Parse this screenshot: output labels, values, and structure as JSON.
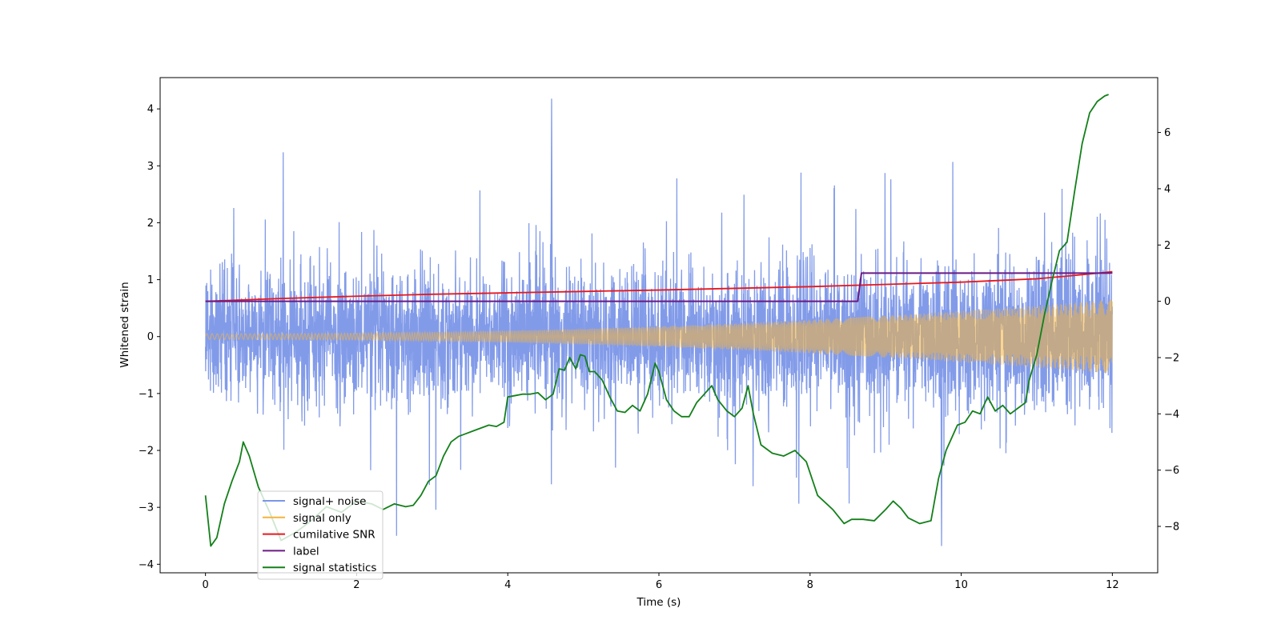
{
  "chart_data": {
    "type": "line",
    "title": "",
    "xlabel": "Time (s)",
    "ylabel": "Whitened strain",
    "y2label": "",
    "xlim": [
      -0.6,
      12.6
    ],
    "ylim": [
      -4.15,
      4.55
    ],
    "y2lim": [
      -9.65,
      7.95
    ],
    "xticks": [
      0,
      2,
      4,
      6,
      8,
      10,
      12
    ],
    "yticks": [
      -4,
      -3,
      -2,
      -1,
      0,
      1,
      2,
      3,
      4
    ],
    "y2ticks": [
      -8,
      -6,
      -4,
      -2,
      0,
      2,
      4,
      6
    ],
    "xtick_labels": [
      "0",
      "2",
      "4",
      "6",
      "8",
      "10",
      "12"
    ],
    "ytick_labels": [
      "−4",
      "−3",
      "−2",
      "−1",
      "0",
      "1",
      "2",
      "3",
      "4"
    ],
    "y2tick_labels": [
      "−8",
      "−6",
      "−4",
      "−2",
      "0",
      "2",
      "4",
      "6"
    ],
    "legend_position": "lower-left",
    "series": [
      {
        "name": "signal+ noise",
        "axis": "left",
        "color": "#7b96e8",
        "style": "dense noise, roughly -2.7 to 4.2, envelope widening with signal",
        "x_range": [
          0,
          12
        ],
        "noise_mean": 0.0,
        "noise_std": 0.75,
        "max_peak": 4.18,
        "min_peak": -3.68
      },
      {
        "name": "signal only",
        "axis": "left",
        "color": "#f5b43c",
        "style": "chirp with amplitude growing from 0.05 to 0.65",
        "x_range": [
          0,
          12
        ],
        "amplitude_start": 0.05,
        "amplitude_end": 0.65
      },
      {
        "name": "cumilative SNR",
        "axis": "right",
        "color": "#e8171e",
        "x": [
          0,
          1,
          2,
          3,
          4,
          5,
          6,
          7,
          8,
          9,
          10,
          11,
          11.5,
          12
        ],
        "values": [
          0.0,
          0.1,
          0.18,
          0.25,
          0.3,
          0.35,
          0.4,
          0.46,
          0.52,
          0.6,
          0.68,
          0.8,
          0.92,
          1.05
        ]
      },
      {
        "name": "label",
        "axis": "right",
        "color": "#6a1a84",
        "x": [
          0,
          8.63,
          8.68,
          12
        ],
        "values": [
          0,
          0,
          1,
          1
        ]
      },
      {
        "name": "signal statistics",
        "axis": "right",
        "color": "#13801a",
        "x": [
          0,
          0.07,
          0.15,
          0.25,
          0.35,
          0.45,
          0.5,
          0.58,
          0.7,
          0.85,
          1.0,
          1.2,
          1.4,
          1.6,
          1.8,
          2.0,
          2.2,
          2.35,
          2.5,
          2.65,
          2.75,
          2.85,
          2.95,
          3.05,
          3.15,
          3.25,
          3.35,
          3.45,
          3.55,
          3.65,
          3.75,
          3.85,
          3.95,
          4.0,
          4.1,
          4.2,
          4.3,
          4.4,
          4.5,
          4.6,
          4.68,
          4.75,
          4.82,
          4.9,
          4.96,
          5.02,
          5.08,
          5.15,
          5.25,
          5.35,
          5.45,
          5.55,
          5.65,
          5.75,
          5.85,
          5.95,
          6.0,
          6.1,
          6.2,
          6.3,
          6.4,
          6.5,
          6.6,
          6.7,
          6.78,
          6.9,
          7.0,
          7.1,
          7.18,
          7.25,
          7.35,
          7.5,
          7.65,
          7.8,
          7.95,
          8.1,
          8.3,
          8.45,
          8.55,
          8.7,
          8.85,
          9.0,
          9.1,
          9.2,
          9.3,
          9.45,
          9.6,
          9.7,
          9.8,
          9.95,
          10.05,
          10.15,
          10.25,
          10.35,
          10.45,
          10.55,
          10.65,
          10.75,
          10.85,
          10.9,
          11.0,
          11.1,
          11.2,
          11.3,
          11.4,
          11.5,
          11.6,
          11.7,
          11.8,
          11.9,
          11.95
        ],
        "values": [
          -6.9,
          -8.7,
          -8.4,
          -7.2,
          -6.4,
          -5.7,
          -5.0,
          -5.5,
          -6.6,
          -7.5,
          -8.5,
          -8.2,
          -7.8,
          -7.3,
          -7.5,
          -7.1,
          -7.2,
          -7.4,
          -7.2,
          -7.3,
          -7.25,
          -6.9,
          -6.4,
          -6.2,
          -5.5,
          -5.0,
          -4.8,
          -4.7,
          -4.6,
          -4.5,
          -4.4,
          -4.45,
          -4.3,
          -3.4,
          -3.35,
          -3.3,
          -3.3,
          -3.25,
          -3.5,
          -3.3,
          -2.4,
          -2.45,
          -2.0,
          -2.4,
          -1.9,
          -1.95,
          -2.5,
          -2.5,
          -2.8,
          -3.4,
          -3.9,
          -3.95,
          -3.7,
          -3.9,
          -3.3,
          -2.2,
          -2.5,
          -3.5,
          -3.9,
          -4.1,
          -4.1,
          -3.6,
          -3.3,
          -3.0,
          -3.5,
          -3.9,
          -4.1,
          -3.8,
          -3.0,
          -4.0,
          -5.1,
          -5.4,
          -5.5,
          -5.3,
          -5.7,
          -6.9,
          -7.4,
          -7.9,
          -7.75,
          -7.75,
          -7.8,
          -7.4,
          -7.1,
          -7.35,
          -7.7,
          -7.9,
          -7.8,
          -6.3,
          -5.3,
          -4.4,
          -4.3,
          -3.9,
          -4.0,
          -3.4,
          -3.9,
          -3.7,
          -4.0,
          -3.8,
          -3.6,
          -2.8,
          -1.9,
          -0.5,
          0.7,
          1.8,
          2.1,
          3.9,
          5.6,
          6.7,
          7.1,
          7.3,
          7.35
        ]
      }
    ]
  }
}
